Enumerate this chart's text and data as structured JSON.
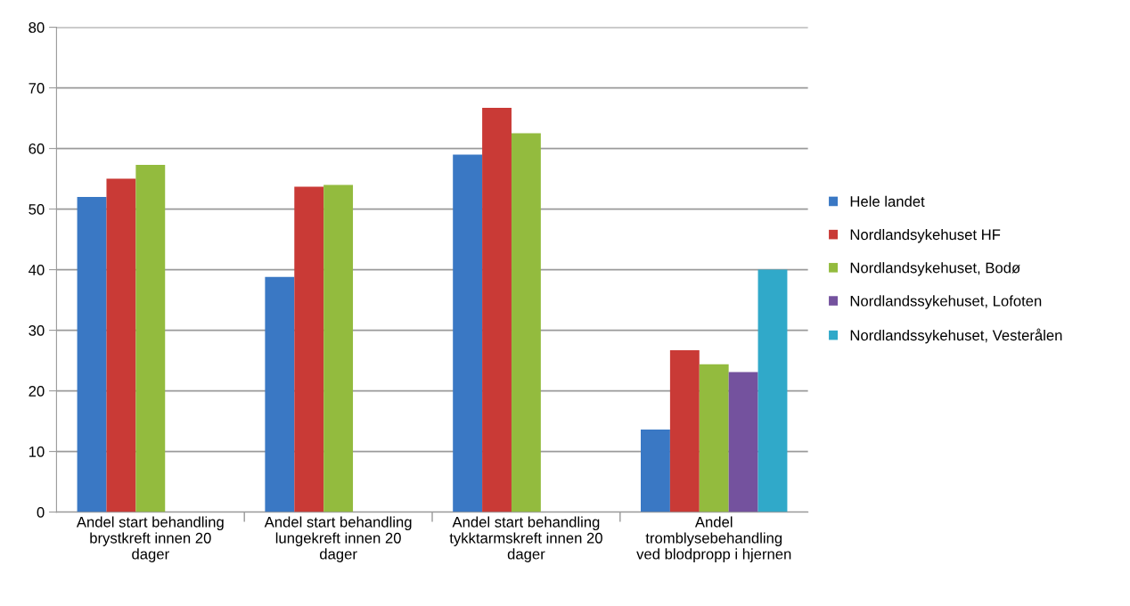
{
  "chart_data": {
    "type": "bar",
    "categories": [
      "Andel start behandling\nbrystkreft innen 20\ndager",
      "Andel start behandling\nlungekreft innen 20\ndager",
      "Andel start behandling\ntykktarmskreft innen 20\ndager",
      "Andel\ntromblysebehandling\nved blodpropp i hjernen"
    ],
    "series": [
      {
        "name": "Hele landet",
        "color": "#3a78c4",
        "values": [
          52,
          38.8,
          59,
          13.6
        ]
      },
      {
        "name": "Nordlandsykehuset HF",
        "color": "#c93a36",
        "values": [
          55,
          53.7,
          66.7,
          26.7
        ]
      },
      {
        "name": "Nordlandsykehuset, Bodø",
        "color": "#93bb3e",
        "values": [
          57.3,
          54,
          62.5,
          24.4
        ]
      },
      {
        "name": "Nordlandssykehuset, Lofoten",
        "color": "#74529e",
        "values": [
          null,
          null,
          null,
          23.1
        ]
      },
      {
        "name": "Nordlandssykehuset, Vesterålen",
        "color": "#30a9c9",
        "values": [
          null,
          null,
          null,
          40
        ]
      }
    ],
    "ylim": [
      0,
      80
    ],
    "yticks": [
      0,
      10,
      20,
      30,
      40,
      50,
      60,
      70,
      80
    ],
    "grid": "y",
    "legend": "right"
  }
}
